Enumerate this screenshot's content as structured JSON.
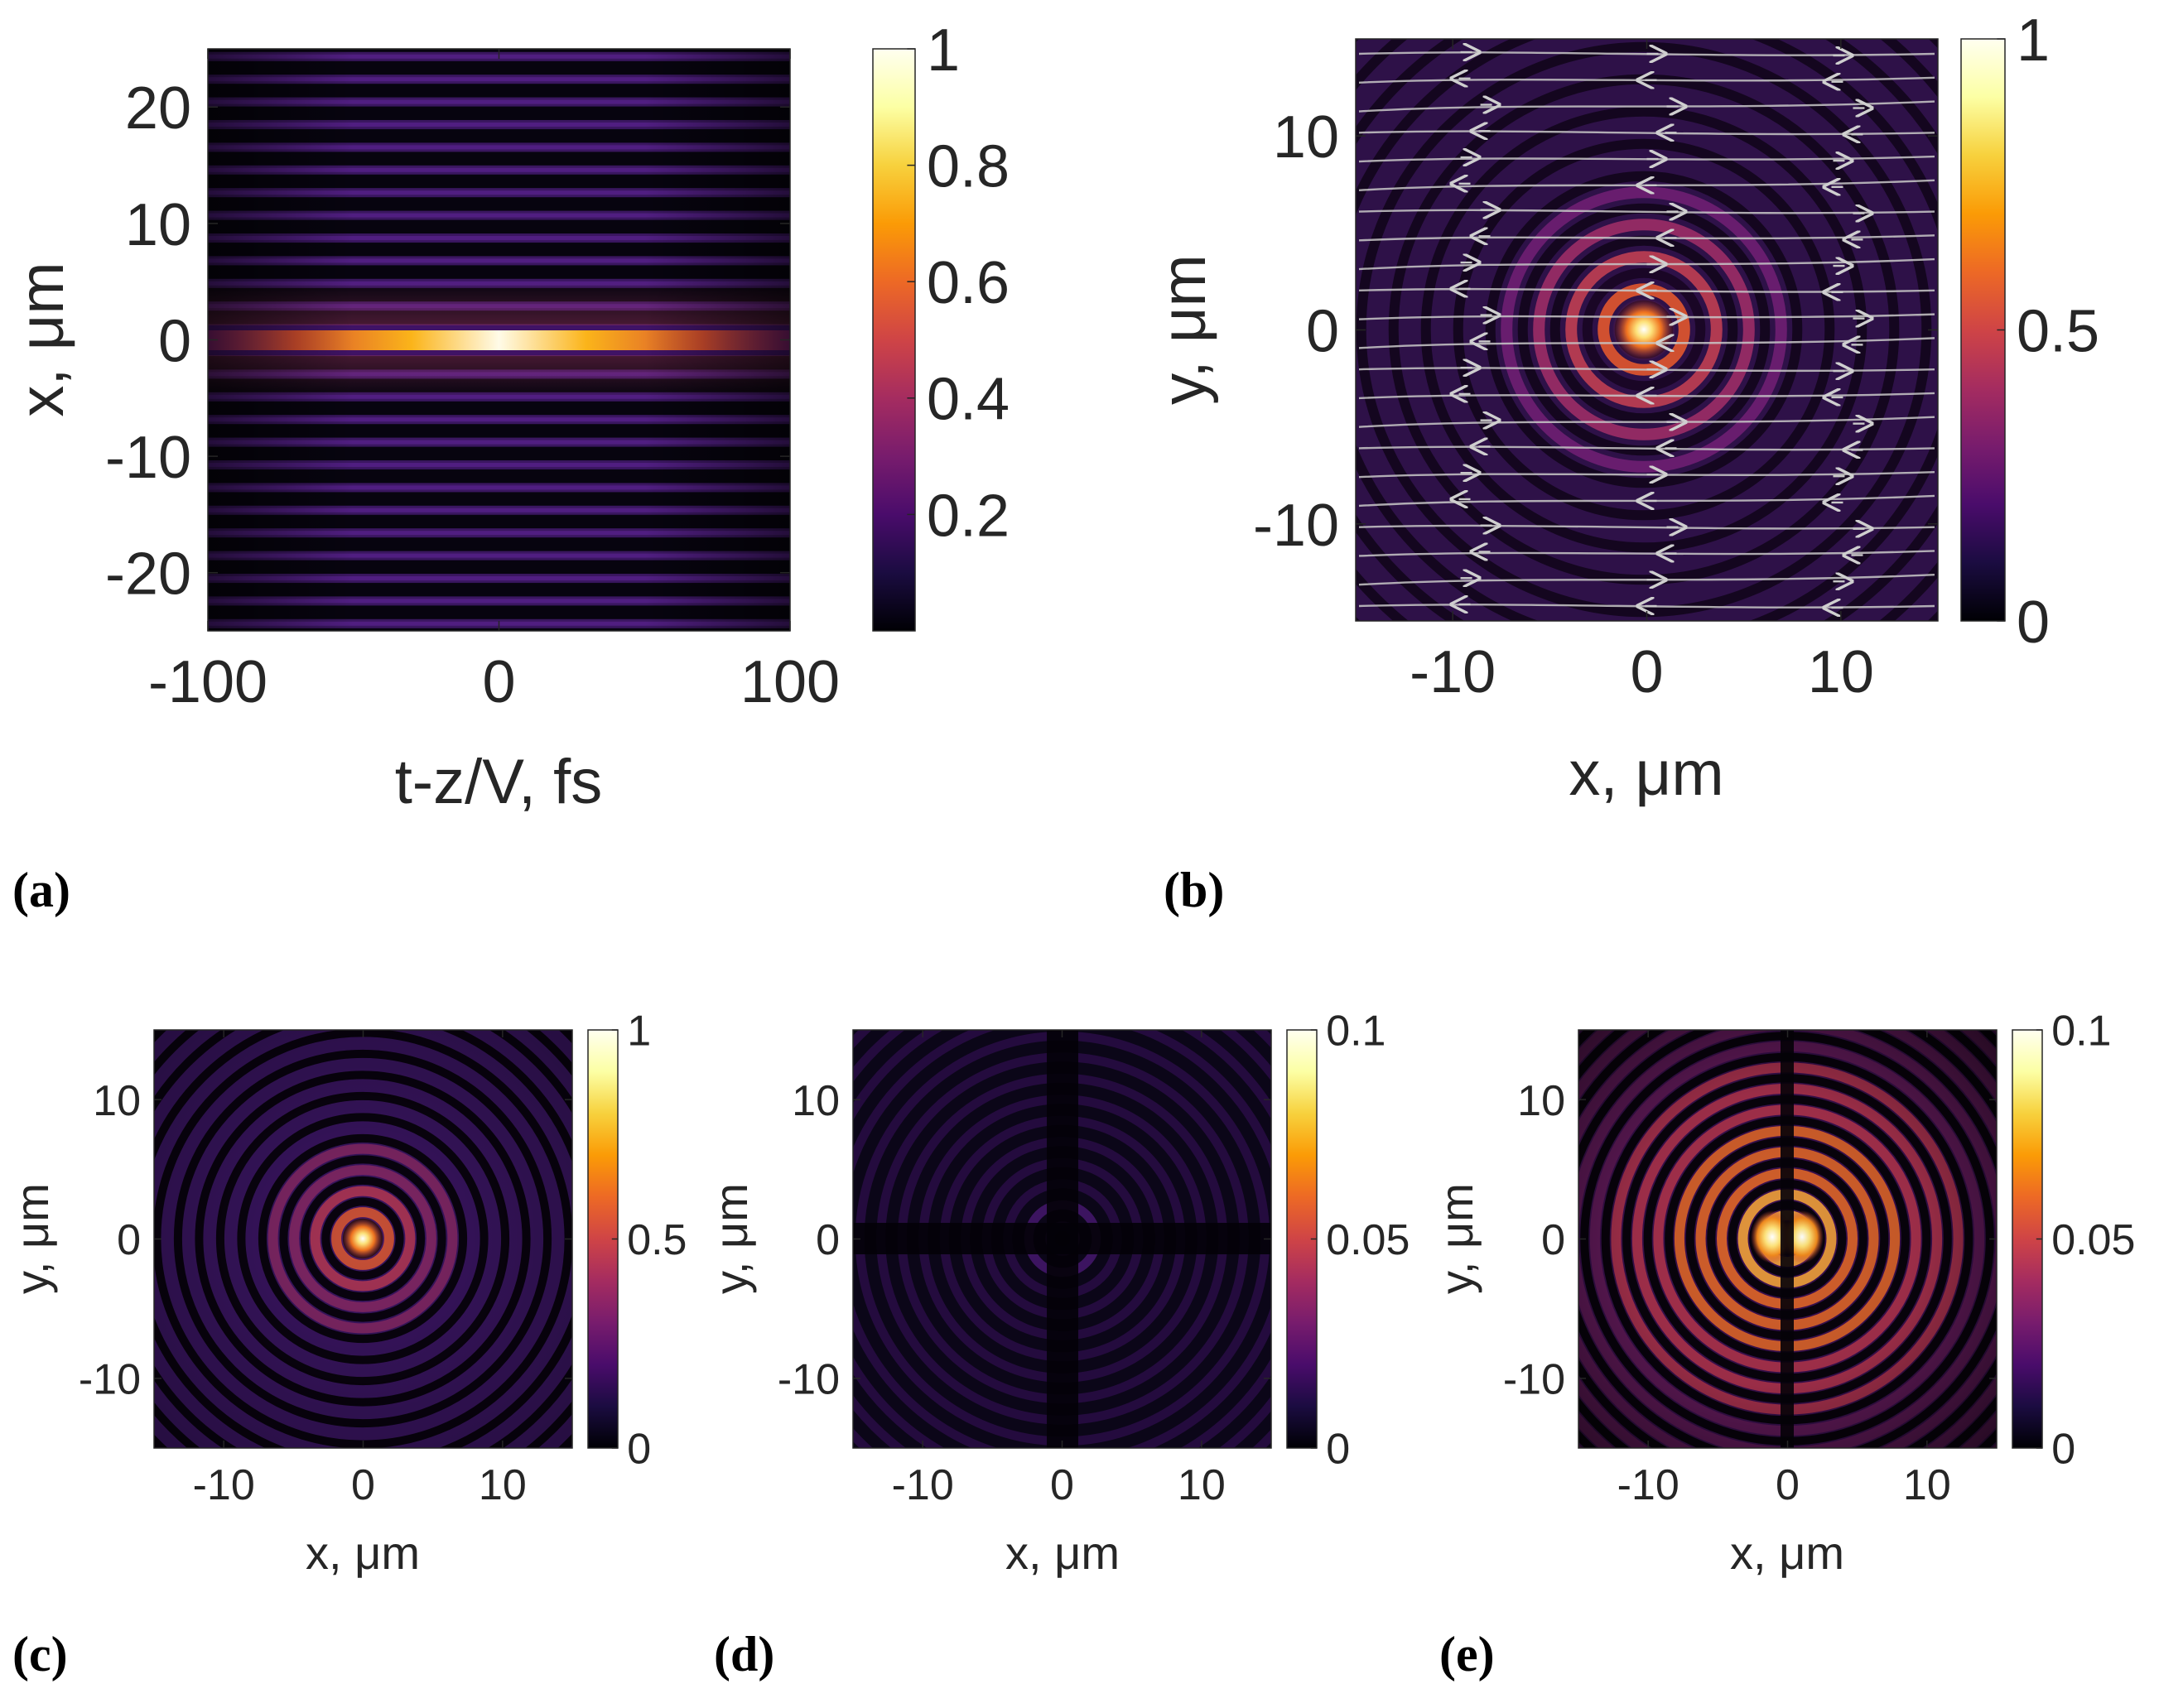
{
  "chart_data": [
    {
      "id": "a",
      "panel_label": "(a)",
      "type": "heatmap",
      "xlabel": "t-z/V, fs",
      "ylabel": "x, μm",
      "xlim": [
        -100,
        100
      ],
      "ylim": [
        -25,
        25
      ],
      "xticks": [
        "-100",
        "0",
        "100"
      ],
      "xtick_values": [
        -100,
        0,
        100
      ],
      "yticks": [
        "-20",
        "-10",
        "0",
        "10",
        "20"
      ],
      "ytick_values": [
        -20,
        -10,
        0,
        10,
        20
      ],
      "colorbar": {
        "range": [
          0,
          1
        ],
        "ticks": [
          "0.2",
          "0.4",
          "0.6",
          "0.8",
          "1"
        ],
        "tick_values": [
          0.2,
          0.4,
          0.6,
          0.8,
          1
        ]
      },
      "colormap": "inferno",
      "pattern": "horizontal fringes (Bessel-like in x), bright line at x=0 peaking near t=0"
    },
    {
      "id": "b",
      "panel_label": "(b)",
      "type": "heatmap",
      "xlabel": "x, μm",
      "ylabel": "y, μm",
      "xlim": [
        -15,
        15
      ],
      "ylim": [
        -15,
        15
      ],
      "xticks": [
        "-10",
        "0",
        "10"
      ],
      "xtick_values": [
        -10,
        0,
        10
      ],
      "yticks": [
        "-10",
        "0",
        "10"
      ],
      "ytick_values": [
        -10,
        0,
        10
      ],
      "colorbar": {
        "range": [
          0,
          1
        ],
        "ticks": [
          "0",
          "0.5",
          "1"
        ],
        "tick_values": [
          0,
          0.5,
          1
        ]
      },
      "colormap": "inferno",
      "pattern": "concentric rings with bright center; overlaid horizontal streamlines with arrows",
      "overlay_color": "#c8c8c8"
    },
    {
      "id": "c",
      "panel_label": "(c)",
      "type": "heatmap",
      "xlabel": "x, μm",
      "ylabel": "y, μm",
      "xlim": [
        -15,
        15
      ],
      "ylim": [
        -15,
        15
      ],
      "xticks": [
        "-10",
        "0",
        "10"
      ],
      "xtick_values": [
        -10,
        0,
        10
      ],
      "yticks": [
        "-10",
        "0",
        "10"
      ],
      "ytick_values": [
        -10,
        0,
        10
      ],
      "colorbar": {
        "range": [
          0,
          1
        ],
        "ticks": [
          "0",
          "0.5",
          "1"
        ],
        "tick_values": [
          0,
          0.5,
          1
        ]
      },
      "colormap": "inferno",
      "pattern": "concentric rings with bright center"
    },
    {
      "id": "d",
      "panel_label": "(d)",
      "type": "heatmap",
      "xlabel": "x, μm",
      "ylabel": "y, μm",
      "xlim": [
        -15,
        15
      ],
      "ylim": [
        -15,
        15
      ],
      "xticks": [
        "-10",
        "0",
        "10"
      ],
      "xtick_values": [
        -10,
        0,
        10
      ],
      "yticks": [
        "-10",
        "0",
        "10"
      ],
      "ytick_values": [
        -10,
        0,
        10
      ],
      "colorbar": {
        "range": [
          0,
          0.1
        ],
        "ticks": [
          "0",
          "0.05",
          "0.1"
        ],
        "tick_values": [
          0,
          0.05,
          0.1
        ]
      },
      "colormap": "inferno",
      "pattern": "faint concentric rings with dark cross along x=0 and y=0"
    },
    {
      "id": "e",
      "panel_label": "(e)",
      "type": "heatmap",
      "xlabel": "x, μm",
      "ylabel": "y, μm",
      "xlim": [
        -15,
        15
      ],
      "ylim": [
        -15,
        15
      ],
      "xticks": [
        "-10",
        "0",
        "10"
      ],
      "xtick_values": [
        -10,
        0,
        10
      ],
      "yticks": [
        "-10",
        "0",
        "10"
      ],
      "ytick_values": [
        -10,
        0,
        10
      ],
      "colorbar": {
        "range": [
          0,
          0.1
        ],
        "ticks": [
          "0",
          "0.05",
          "0.1"
        ],
        "tick_values": [
          0,
          0.05,
          0.1
        ]
      },
      "colormap": "inferno",
      "pattern": "concentric rings with two bright lobes near center, dark line along x=0"
    }
  ]
}
